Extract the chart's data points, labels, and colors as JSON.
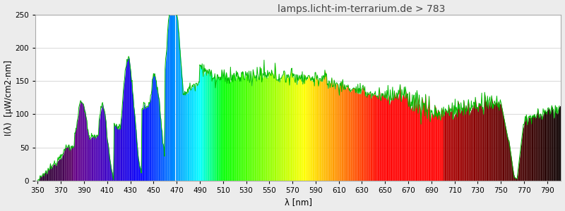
{
  "title": "lamps.licht-im-terrarium.de > 783",
  "xlabel": "λ [nm]",
  "ylabel": "I(λ)  [µW/cm2⋅nm]",
  "xlim": [
    348,
    802
  ],
  "ylim": [
    0,
    250
  ],
  "yticks": [
    0,
    50,
    100,
    150,
    200,
    250
  ],
  "xticks": [
    350,
    370,
    390,
    410,
    430,
    450,
    470,
    490,
    510,
    530,
    550,
    570,
    590,
    610,
    630,
    650,
    670,
    690,
    710,
    730,
    750,
    770,
    790
  ],
  "background_color": "#ececec",
  "plot_bg_color": "#ffffff",
  "title_fontsize": 10,
  "axis_fontsize": 8.5,
  "tick_fontsize": 7.5,
  "line_color": "#00bb00"
}
